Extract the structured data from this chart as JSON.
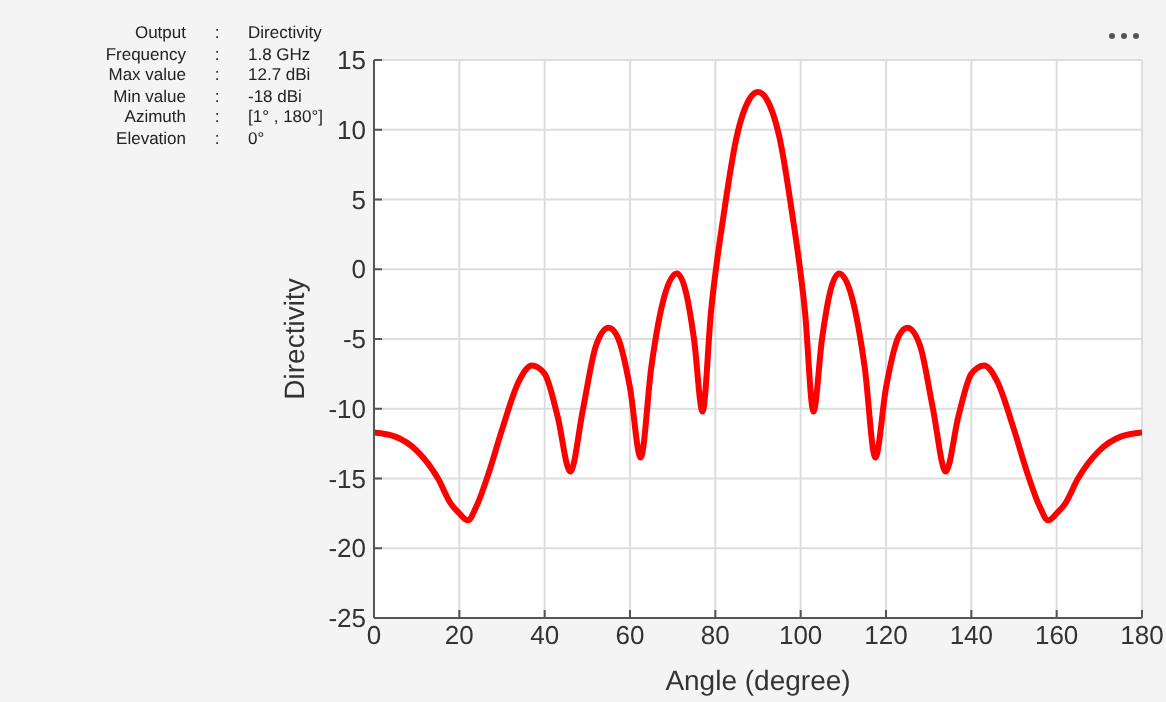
{
  "chart_data": {
    "type": "line",
    "xlabel": "Angle (degree)",
    "ylabel": "Directivity",
    "annotations": [
      "Output",
      ":",
      "Directivity",
      "Frequency",
      ":",
      "1.8 GHz",
      "Max value",
      ":",
      "12.7 dBi",
      "Min value",
      ":",
      "-18 dBi",
      "Azimuth",
      ":",
      "[1° , 180°]",
      "Elevation",
      ":",
      "0°"
    ],
    "x": [
      0,
      5,
      10,
      15,
      18,
      20,
      22,
      24,
      27,
      30,
      34,
      37,
      40,
      43,
      46,
      49,
      52,
      55,
      57,
      60,
      62.5,
      65,
      68,
      71,
      73,
      75,
      77,
      79,
      82,
      85,
      88,
      90,
      92,
      95,
      98,
      101,
      103,
      105,
      107,
      109,
      112,
      115,
      117.5,
      120,
      123,
      125,
      128,
      131,
      134,
      137,
      140,
      143,
      146,
      150,
      153,
      156,
      158,
      160,
      162,
      165,
      170,
      175,
      180
    ],
    "series": [
      {
        "color": "#ff0000",
        "values": [
          -11.7,
          -12,
          -13,
          -15,
          -16.8,
          -17.5,
          -18,
          -17,
          -14.5,
          -11.5,
          -8,
          -6.9,
          -7.5,
          -10.5,
          -14.5,
          -10,
          -5.5,
          -4.2,
          -4.8,
          -8.5,
          -13.5,
          -7,
          -2,
          -0.3,
          -1.5,
          -5,
          -10.2,
          -3,
          4,
          9.5,
          12.2,
          12.7,
          12.2,
          9.5,
          4,
          -3,
          -10.2,
          -5,
          -1.5,
          -0.3,
          -2,
          -7,
          -13.5,
          -8.5,
          -4.8,
          -4.2,
          -5.5,
          -10,
          -14.5,
          -10.5,
          -7.5,
          -6.9,
          -8,
          -11.5,
          -14.5,
          -17,
          -18,
          -17.5,
          -16.8,
          -15,
          -13,
          -12,
          -11.7
        ]
      }
    ],
    "xlim": [
      0,
      180
    ],
    "xticks": [
      0,
      20,
      40,
      60,
      80,
      100,
      120,
      140,
      160,
      180
    ],
    "ylim": [
      -25,
      15
    ],
    "yticks": [
      -25,
      -20,
      -15,
      -10,
      -5,
      0,
      5,
      10,
      15
    ],
    "grid": true,
    "marker": "none",
    "line_style": "solid"
  }
}
